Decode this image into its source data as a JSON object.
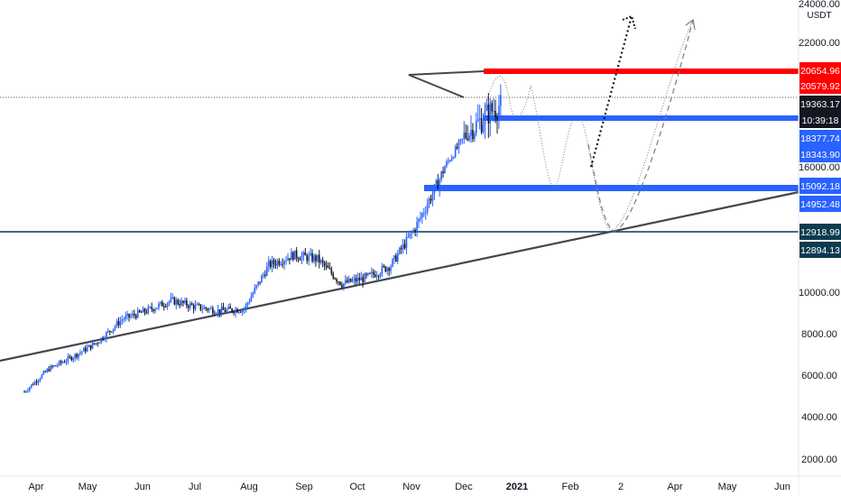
{
  "chart_data": {
    "type": "candlestick",
    "symbol_currency": "USDT",
    "x_ticks": [
      "Apr",
      "May",
      "Jun",
      "Jul",
      "Aug",
      "Sep",
      "Oct",
      "Nov",
      "Dec",
      "2021",
      "Feb",
      "2",
      "Apr",
      "May",
      "Jun"
    ],
    "y_ticks": [
      "2000.00",
      "4000.00",
      "6000.00",
      "8000.00",
      "10000.00",
      "16000.00",
      "22000.00",
      "24000.00"
    ],
    "last_price": "19363.17",
    "countdown": "10:39:18",
    "price_levels": [
      {
        "label": "20654.96",
        "color": "#ff0000",
        "style": "resistance"
      },
      {
        "label": "20579.92",
        "color": "#ff0000",
        "style": "level"
      },
      {
        "label": "18377.74",
        "color": "#2962ff",
        "style": "level"
      },
      {
        "label": "18343.90",
        "color": "#2962ff",
        "style": "level"
      },
      {
        "label": "15092.18",
        "color": "#2962ff",
        "style": "level"
      },
      {
        "label": "14952.48",
        "color": "#2962ff",
        "style": "level"
      },
      {
        "label": "12918.99",
        "color": "#0d3b4f",
        "style": "level"
      },
      {
        "label": "12894.13",
        "color": "#0d3b4f",
        "style": "level"
      }
    ],
    "support_line": {
      "from": {
        "date": "2020-03-12",
        "price": 6700
      },
      "to": {
        "date": "2021-06-30",
        "price": 15000
      }
    },
    "colors": {
      "candle": "#2962ff",
      "resistance": "#ff0000",
      "support": "#2962ff",
      "trendline": "#434651",
      "last_price": "#131722"
    },
    "ohlc_approx": [
      {
        "date": "2020-03-15",
        "close": 5200
      },
      {
        "date": "2020-03-29",
        "close": 6300
      },
      {
        "date": "2020-04-12",
        "close": 6900
      },
      {
        "date": "2020-04-26",
        "close": 7600
      },
      {
        "date": "2020-05-10",
        "close": 8700
      },
      {
        "date": "2020-05-24",
        "close": 9100
      },
      {
        "date": "2020-06-07",
        "close": 9600
      },
      {
        "date": "2020-06-21",
        "close": 9300
      },
      {
        "date": "2020-07-05",
        "close": 9100
      },
      {
        "date": "2020-07-19",
        "close": 9200
      },
      {
        "date": "2020-08-02",
        "close": 11300
      },
      {
        "date": "2020-08-16",
        "close": 11800
      },
      {
        "date": "2020-08-30",
        "close": 11600
      },
      {
        "date": "2020-09-13",
        "close": 10400
      },
      {
        "date": "2020-09-27",
        "close": 10700
      },
      {
        "date": "2020-10-11",
        "close": 11300
      },
      {
        "date": "2020-10-25",
        "close": 13100
      },
      {
        "date": "2020-11-08",
        "close": 15400
      },
      {
        "date": "2020-11-22",
        "close": 18400
      },
      {
        "date": "2020-12-06",
        "close": 19100
      },
      {
        "date": "2020-12-13",
        "close": 19363
      }
    ]
  }
}
